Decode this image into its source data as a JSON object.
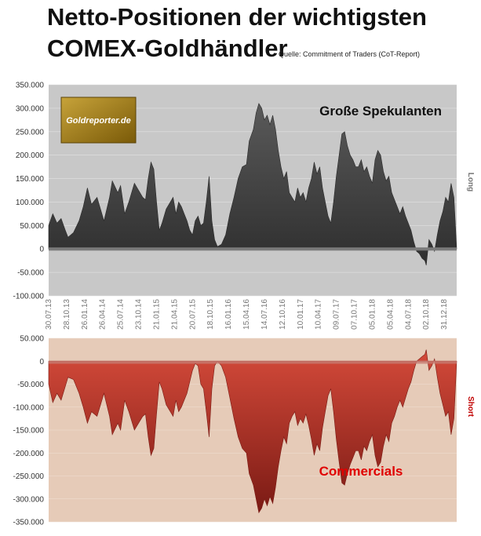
{
  "title_line1": "Netto-Positionen der wichtigsten",
  "title_line2": "COMEX-Goldhändler",
  "source": "Quelle: Commitment of Traders (CoT-Report)",
  "logo_text": "Goldreporter.de",
  "colors": {
    "top_background": "#c8c8c8",
    "top_fill": "#3a3a3a",
    "bottom_background": "#e6cbb8",
    "bottom_fill": "#a52a24",
    "commercials_label": "#e00000",
    "short_label": "#c00000",
    "logo_bg": "#a07a10"
  },
  "chart_data": [
    {
      "type": "area",
      "label": "Große Spekulanten",
      "side_label": "Long",
      "ylim": [
        -100000,
        350000
      ],
      "yticks": [
        "-100.000",
        "-50.000",
        "0",
        "50.000",
        "100.000",
        "150.000",
        "200.000",
        "250.000",
        "300.000",
        "350.000"
      ],
      "ytick_values": [
        -100000,
        -50000,
        0,
        50000,
        100000,
        150000,
        200000,
        250000,
        300000,
        350000
      ],
      "x_ticks": [
        "30.07.13",
        "28.10.13",
        "26.01.14",
        "26.04.14",
        "25.07.14",
        "23.10.14",
        "21.01.15",
        "21.04.15",
        "20.07.15",
        "18.10.15",
        "16.01.16",
        "15.04.16",
        "14.07.16",
        "12.10.16",
        "10.01.17",
        "10.04.17",
        "09.07.17",
        "07.10.17",
        "05.01.18",
        "05.04.18",
        "04.07.18",
        "02.10.18",
        "31.12.18"
      ],
      "x_tick_index": [
        0,
        13,
        26,
        39,
        52,
        65,
        78,
        91,
        104,
        117,
        130,
        143,
        156,
        169,
        182,
        195,
        208,
        221,
        234,
        247,
        260,
        273,
        286
      ],
      "x_count": 296,
      "points": [
        [
          0,
          50000
        ],
        [
          3,
          75000
        ],
        [
          6,
          55000
        ],
        [
          9,
          65000
        ],
        [
          12,
          40000
        ],
        [
          14,
          25000
        ],
        [
          18,
          35000
        ],
        [
          22,
          60000
        ],
        [
          25,
          90000
        ],
        [
          28,
          130000
        ],
        [
          31,
          95000
        ],
        [
          35,
          110000
        ],
        [
          38,
          80000
        ],
        [
          40,
          60000
        ],
        [
          44,
          110000
        ],
        [
          46,
          145000
        ],
        [
          50,
          120000
        ],
        [
          52,
          135000
        ],
        [
          55,
          75000
        ],
        [
          58,
          100000
        ],
        [
          62,
          140000
        ],
        [
          65,
          125000
        ],
        [
          68,
          110000
        ],
        [
          70,
          105000
        ],
        [
          72,
          150000
        ],
        [
          74,
          185000
        ],
        [
          76,
          170000
        ],
        [
          78,
          100000
        ],
        [
          80,
          40000
        ],
        [
          82,
          55000
        ],
        [
          85,
          85000
        ],
        [
          88,
          100000
        ],
        [
          90,
          110000
        ],
        [
          92,
          75000
        ],
        [
          94,
          100000
        ],
        [
          96,
          90000
        ],
        [
          98,
          75000
        ],
        [
          100,
          60000
        ],
        [
          102,
          40000
        ],
        [
          104,
          30000
        ],
        [
          106,
          60000
        ],
        [
          108,
          70000
        ],
        [
          110,
          50000
        ],
        [
          112,
          55000
        ],
        [
          114,
          100000
        ],
        [
          116,
          155000
        ],
        [
          118,
          60000
        ],
        [
          120,
          20000
        ],
        [
          122,
          5000
        ],
        [
          125,
          10000
        ],
        [
          128,
          30000
        ],
        [
          131,
          75000
        ],
        [
          134,
          110000
        ],
        [
          137,
          150000
        ],
        [
          140,
          175000
        ],
        [
          143,
          180000
        ],
        [
          145,
          230000
        ],
        [
          148,
          255000
        ],
        [
          150,
          290000
        ],
        [
          152,
          310000
        ],
        [
          154,
          300000
        ],
        [
          156,
          275000
        ],
        [
          158,
          285000
        ],
        [
          160,
          265000
        ],
        [
          162,
          285000
        ],
        [
          164,
          255000
        ],
        [
          166,
          210000
        ],
        [
          168,
          175000
        ],
        [
          170,
          150000
        ],
        [
          172,
          165000
        ],
        [
          174,
          120000
        ],
        [
          176,
          110000
        ],
        [
          178,
          100000
        ],
        [
          180,
          130000
        ],
        [
          182,
          110000
        ],
        [
          184,
          120000
        ],
        [
          186,
          100000
        ],
        [
          188,
          130000
        ],
        [
          190,
          150000
        ],
        [
          192,
          185000
        ],
        [
          194,
          160000
        ],
        [
          196,
          175000
        ],
        [
          198,
          130000
        ],
        [
          200,
          100000
        ],
        [
          202,
          70000
        ],
        [
          204,
          55000
        ],
        [
          206,
          100000
        ],
        [
          208,
          155000
        ],
        [
          210,
          200000
        ],
        [
          212,
          245000
        ],
        [
          214,
          250000
        ],
        [
          216,
          220000
        ],
        [
          218,
          200000
        ],
        [
          220,
          190000
        ],
        [
          222,
          175000
        ],
        [
          224,
          175000
        ],
        [
          226,
          190000
        ],
        [
          228,
          165000
        ],
        [
          230,
          175000
        ],
        [
          232,
          155000
        ],
        [
          234,
          140000
        ],
        [
          236,
          190000
        ],
        [
          238,
          210000
        ],
        [
          240,
          200000
        ],
        [
          242,
          165000
        ],
        [
          244,
          145000
        ],
        [
          246,
          155000
        ],
        [
          248,
          120000
        ],
        [
          250,
          105000
        ],
        [
          252,
          90000
        ],
        [
          254,
          75000
        ],
        [
          256,
          90000
        ],
        [
          258,
          70000
        ],
        [
          260,
          55000
        ],
        [
          262,
          40000
        ],
        [
          264,
          15000
        ],
        [
          266,
          -5000
        ],
        [
          268,
          -10000
        ],
        [
          270,
          -20000
        ],
        [
          272,
          -25000
        ],
        [
          273,
          -35000
        ],
        [
          275,
          20000
        ],
        [
          277,
          10000
        ],
        [
          279,
          -5000
        ],
        [
          281,
          30000
        ],
        [
          283,
          60000
        ],
        [
          285,
          80000
        ],
        [
          287,
          110000
        ],
        [
          289,
          100000
        ],
        [
          291,
          140000
        ],
        [
          293,
          110000
        ],
        [
          295,
          0
        ]
      ]
    },
    {
      "type": "area",
      "label": "Commercials",
      "side_label": "Short",
      "ylim": [
        -350000,
        50000
      ],
      "yticks": [
        "-350.000",
        "-300.000",
        "-250.000",
        "-200.000",
        "-150.000",
        "-100.000",
        "-50.000",
        "0",
        "50.000"
      ],
      "ytick_values": [
        -350000,
        -300000,
        -250000,
        -200000,
        -150000,
        -100000,
        -50000,
        0,
        50000
      ],
      "x_count": 296,
      "points": [
        [
          0,
          -50000
        ],
        [
          3,
          -90000
        ],
        [
          6,
          -70000
        ],
        [
          9,
          -85000
        ],
        [
          12,
          -55000
        ],
        [
          14,
          -35000
        ],
        [
          18,
          -40000
        ],
        [
          22,
          -70000
        ],
        [
          25,
          -100000
        ],
        [
          28,
          -135000
        ],
        [
          31,
          -110000
        ],
        [
          35,
          -120000
        ],
        [
          38,
          -90000
        ],
        [
          40,
          -70000
        ],
        [
          44,
          -120000
        ],
        [
          46,
          -160000
        ],
        [
          50,
          -135000
        ],
        [
          52,
          -150000
        ],
        [
          55,
          -85000
        ],
        [
          58,
          -110000
        ],
        [
          62,
          -150000
        ],
        [
          65,
          -135000
        ],
        [
          68,
          -120000
        ],
        [
          70,
          -115000
        ],
        [
          72,
          -165000
        ],
        [
          74,
          -205000
        ],
        [
          76,
          -190000
        ],
        [
          78,
          -115000
        ],
        [
          80,
          -45000
        ],
        [
          82,
          -60000
        ],
        [
          85,
          -95000
        ],
        [
          88,
          -110000
        ],
        [
          90,
          -120000
        ],
        [
          92,
          -85000
        ],
        [
          94,
          -110000
        ],
        [
          96,
          -100000
        ],
        [
          98,
          -85000
        ],
        [
          100,
          -70000
        ],
        [
          102,
          -45000
        ],
        [
          104,
          -20000
        ],
        [
          106,
          -5000
        ],
        [
          108,
          -10000
        ],
        [
          110,
          -50000
        ],
        [
          112,
          -60000
        ],
        [
          114,
          -110000
        ],
        [
          116,
          -165000
        ],
        [
          118,
          -60000
        ],
        [
          120,
          -10000
        ],
        [
          122,
          0
        ],
        [
          125,
          -10000
        ],
        [
          128,
          -35000
        ],
        [
          131,
          -80000
        ],
        [
          134,
          -125000
        ],
        [
          137,
          -165000
        ],
        [
          140,
          -190000
        ],
        [
          143,
          -200000
        ],
        [
          145,
          -245000
        ],
        [
          148,
          -270000
        ],
        [
          150,
          -300000
        ],
        [
          152,
          -330000
        ],
        [
          154,
          -320000
        ],
        [
          156,
          -300000
        ],
        [
          158,
          -315000
        ],
        [
          160,
          -295000
        ],
        [
          162,
          -310000
        ],
        [
          164,
          -275000
        ],
        [
          166,
          -230000
        ],
        [
          168,
          -195000
        ],
        [
          170,
          -165000
        ],
        [
          172,
          -180000
        ],
        [
          174,
          -135000
        ],
        [
          176,
          -120000
        ],
        [
          178,
          -110000
        ],
        [
          180,
          -140000
        ],
        [
          182,
          -125000
        ],
        [
          184,
          -135000
        ],
        [
          186,
          -115000
        ],
        [
          188,
          -140000
        ],
        [
          190,
          -170000
        ],
        [
          192,
          -205000
        ],
        [
          194,
          -180000
        ],
        [
          196,
          -195000
        ],
        [
          198,
          -145000
        ],
        [
          200,
          -110000
        ],
        [
          202,
          -75000
        ],
        [
          204,
          -60000
        ],
        [
          206,
          -110000
        ],
        [
          208,
          -170000
        ],
        [
          210,
          -220000
        ],
        [
          212,
          -265000
        ],
        [
          214,
          -270000
        ],
        [
          216,
          -245000
        ],
        [
          218,
          -225000
        ],
        [
          220,
          -210000
        ],
        [
          222,
          -195000
        ],
        [
          224,
          -195000
        ],
        [
          226,
          -215000
        ],
        [
          228,
          -185000
        ],
        [
          230,
          -195000
        ],
        [
          232,
          -175000
        ],
        [
          234,
          -160000
        ],
        [
          236,
          -205000
        ],
        [
          238,
          -230000
        ],
        [
          240,
          -220000
        ],
        [
          242,
          -185000
        ],
        [
          244,
          -160000
        ],
        [
          246,
          -175000
        ],
        [
          248,
          -135000
        ],
        [
          250,
          -120000
        ],
        [
          252,
          -100000
        ],
        [
          254,
          -85000
        ],
        [
          256,
          -100000
        ],
        [
          258,
          -80000
        ],
        [
          260,
          -60000
        ],
        [
          262,
          -45000
        ],
        [
          264,
          -20000
        ],
        [
          266,
          0
        ],
        [
          268,
          5000
        ],
        [
          270,
          10000
        ],
        [
          272,
          15000
        ],
        [
          273,
          25000
        ],
        [
          275,
          -20000
        ],
        [
          277,
          -10000
        ],
        [
          279,
          5000
        ],
        [
          281,
          -35000
        ],
        [
          283,
          -70000
        ],
        [
          285,
          -95000
        ],
        [
          287,
          -120000
        ],
        [
          289,
          -110000
        ],
        [
          291,
          -160000
        ],
        [
          293,
          -125000
        ],
        [
          295,
          0
        ]
      ]
    }
  ]
}
